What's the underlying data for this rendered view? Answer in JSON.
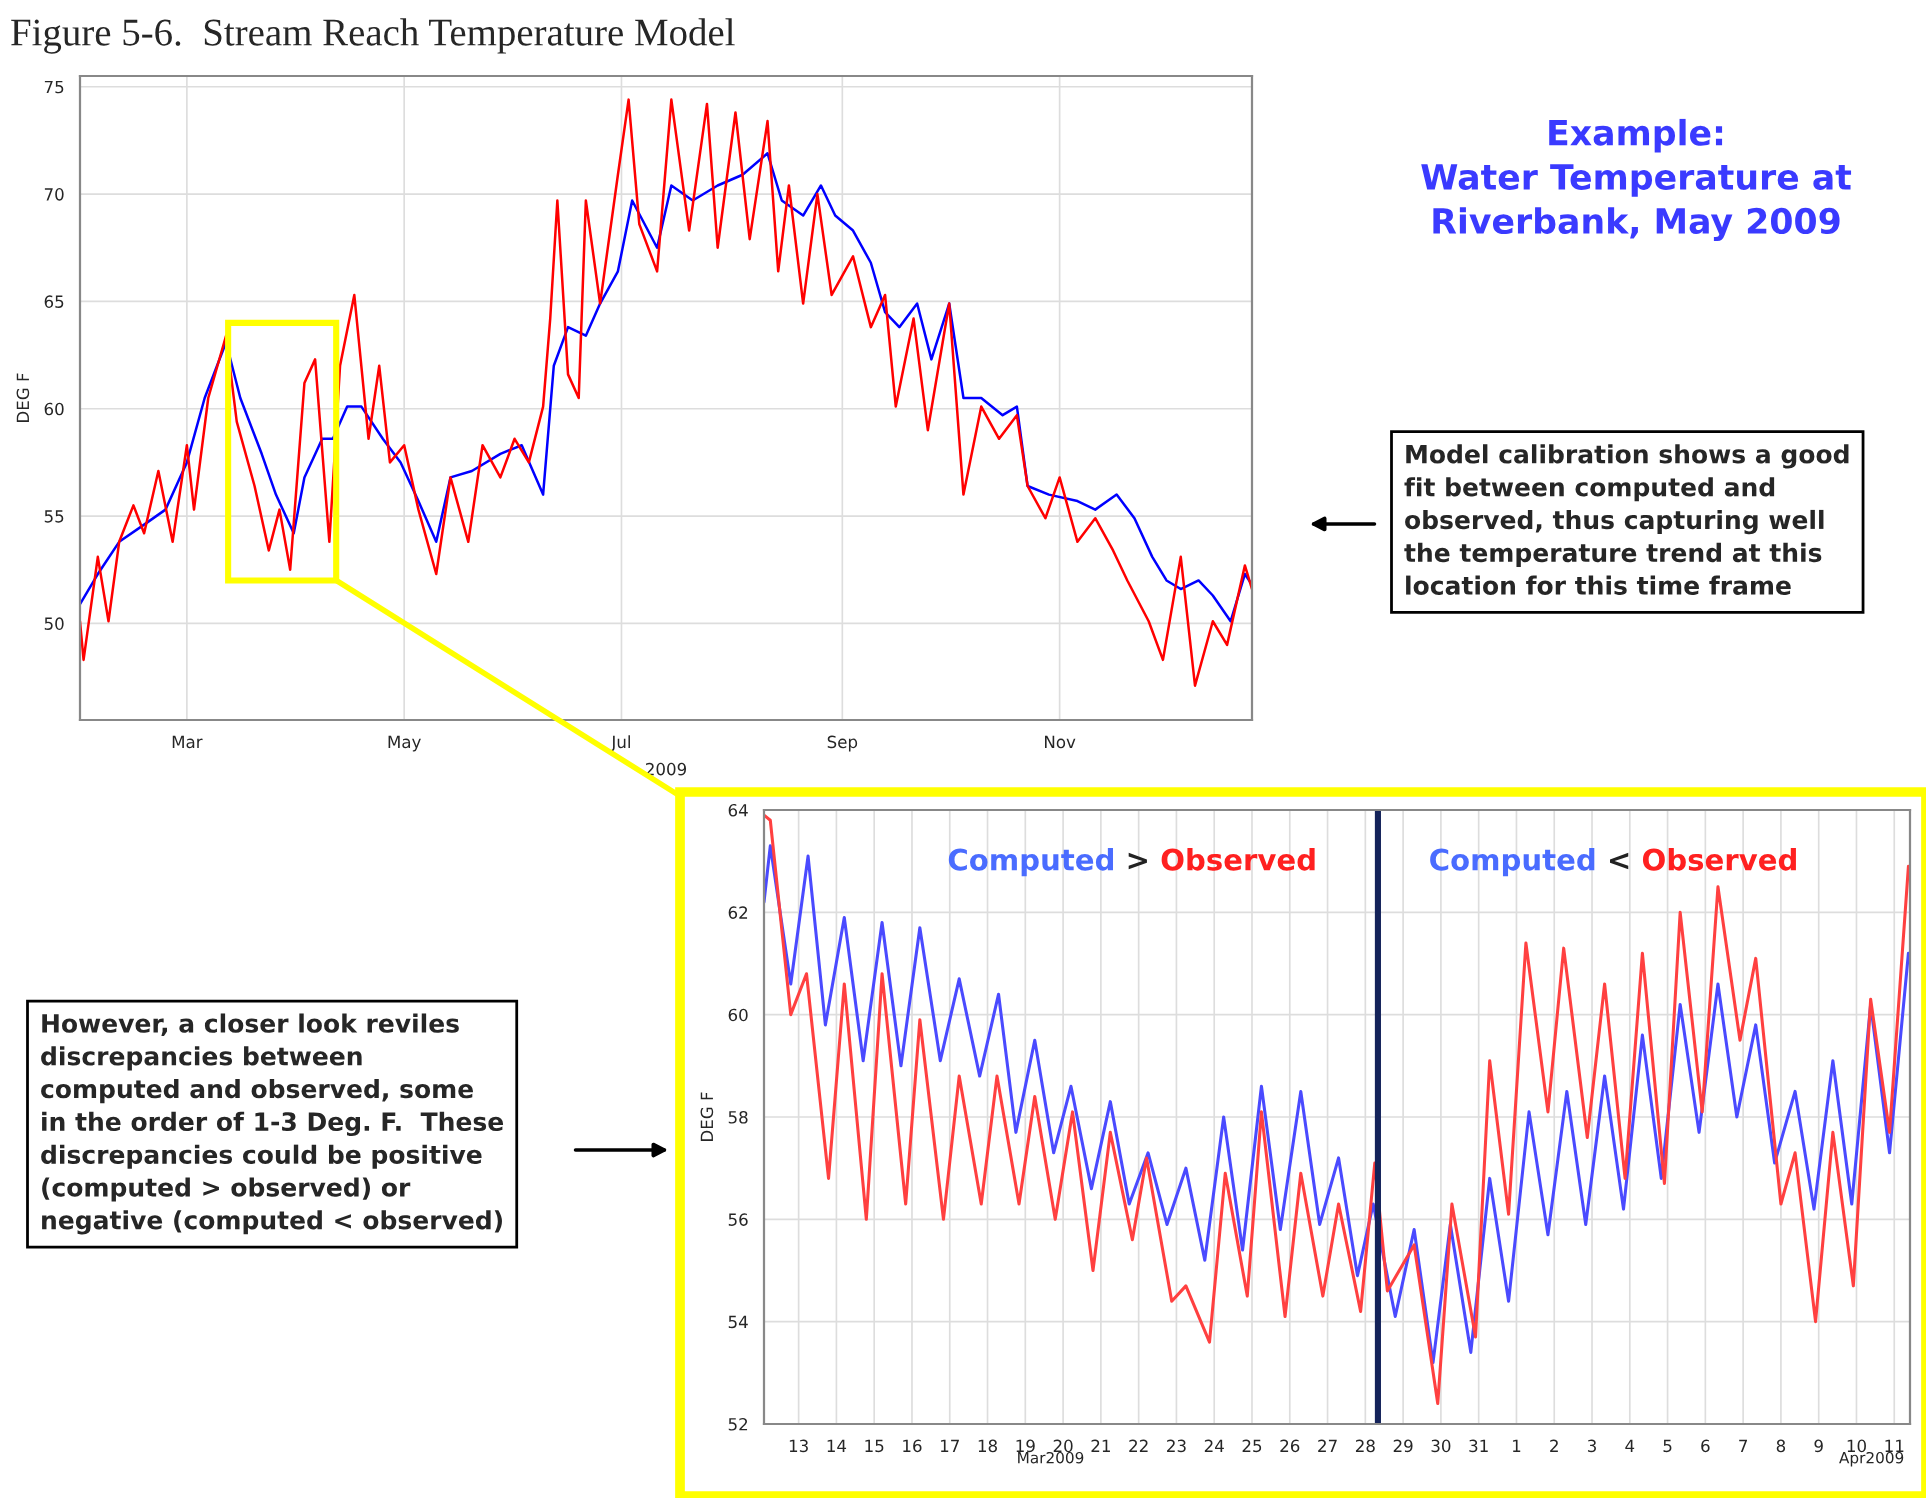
{
  "chart_data": [
    {
      "type": "line",
      "title": "Figure 5-6.  Stream Reach Temperature Model",
      "ylabel": "DEG F",
      "xlabel": "2009",
      "x": [
        "2009-01-30",
        "2009-01-31",
        "2009-02-04",
        "2009-02-07",
        "2009-02-10",
        "2009-02-14",
        "2009-02-17",
        "2009-02-21",
        "2009-02-25",
        "2009-03-01",
        "2009-03-03",
        "2009-03-07",
        "2009-03-12",
        "2009-03-15",
        "2009-03-20",
        "2009-03-24",
        "2009-03-27",
        "2009-03-30",
        "2009-04-03",
        "2009-04-06",
        "2009-04-10",
        "2009-04-13",
        "2009-04-17",
        "2009-04-21",
        "2009-04-24",
        "2009-04-27",
        "2009-05-01",
        "2009-05-05",
        "2009-05-10",
        "2009-05-14",
        "2009-05-19",
        "2009-05-23",
        "2009-05-28",
        "2009-06-01",
        "2009-06-05",
        "2009-06-09",
        "2009-06-11",
        "2009-06-13",
        "2009-06-16",
        "2009-06-19",
        "2009-06-21",
        "2009-06-25",
        "2009-06-30",
        "2009-07-03",
        "2009-07-06",
        "2009-07-11",
        "2009-07-15",
        "2009-07-20",
        "2009-07-25",
        "2009-07-28",
        "2009-08-02",
        "2009-08-06",
        "2009-08-11",
        "2009-08-14",
        "2009-08-17",
        "2009-08-21",
        "2009-08-25",
        "2009-08-29",
        "2009-09-04",
        "2009-09-09",
        "2009-09-13",
        "2009-09-16",
        "2009-09-21",
        "2009-09-25",
        "2009-10-01",
        "2009-10-05",
        "2009-10-10",
        "2009-10-15",
        "2009-10-20",
        "2009-10-23",
        "2009-10-28",
        "2009-11-01",
        "2009-11-06",
        "2009-11-11",
        "2009-11-16",
        "2009-11-20",
        "2009-11-26",
        "2009-11-30",
        "2009-12-05",
        "2009-12-09",
        "2009-12-14",
        "2009-12-18",
        "2009-12-23",
        "2009-12-25"
      ],
      "series": [
        {
          "color": "#0000ff",
          "x": [
            "2009-01-30",
            "2009-02-04",
            "2009-02-10",
            "2009-02-17",
            "2009-02-23",
            "2009-03-01",
            "2009-03-06",
            "2009-03-12",
            "2009-03-16",
            "2009-03-22",
            "2009-03-26",
            "2009-03-31",
            "2009-04-03",
            "2009-04-08",
            "2009-04-11",
            "2009-04-15",
            "2009-04-19",
            "2009-04-25",
            "2009-04-30",
            "2009-05-05",
            "2009-05-10",
            "2009-05-14",
            "2009-05-20",
            "2009-05-28",
            "2009-06-03",
            "2009-06-09",
            "2009-06-12",
            "2009-06-16",
            "2009-06-21",
            "2009-06-25",
            "2009-06-30",
            "2009-07-04",
            "2009-07-11",
            "2009-07-15",
            "2009-07-21",
            "2009-07-28",
            "2009-08-04",
            "2009-08-11",
            "2009-08-15",
            "2009-08-21",
            "2009-08-26",
            "2009-08-30",
            "2009-09-04",
            "2009-09-09",
            "2009-09-13",
            "2009-09-17",
            "2009-09-22",
            "2009-09-26",
            "2009-10-01",
            "2009-10-05",
            "2009-10-10",
            "2009-10-16",
            "2009-10-20",
            "2009-10-23",
            "2009-10-29",
            "2009-11-06",
            "2009-11-11",
            "2009-11-17",
            "2009-11-22",
            "2009-11-27",
            "2009-12-01",
            "2009-12-05",
            "2009-12-10",
            "2009-12-14",
            "2009-12-19",
            "2009-12-23",
            "2009-12-25"
          ],
          "values": [
            50.9,
            52.3,
            53.8,
            54.6,
            55.3,
            57.5,
            60.5,
            63.1,
            60.5,
            57.9,
            56.0,
            54.2,
            56.8,
            58.6,
            58.6,
            60.1,
            60.1,
            58.6,
            57.5,
            55.7,
            53.8,
            56.8,
            57.1,
            57.9,
            58.3,
            56.0,
            62.0,
            63.8,
            63.4,
            64.9,
            66.4,
            69.7,
            67.5,
            70.4,
            69.7,
            70.4,
            70.9,
            71.9,
            69.7,
            69.0,
            70.4,
            69.0,
            68.3,
            66.8,
            64.5,
            63.8,
            64.9,
            62.3,
            64.9,
            60.5,
            60.5,
            59.7,
            60.1,
            56.4,
            56.0,
            55.7,
            55.3,
            56.0,
            54.9,
            53.1,
            52.0,
            51.6,
            52.0,
            51.3,
            50.1,
            52.3,
            51.8
          ]
        },
        {
          "color": "#ff0000",
          "values": [
            50.1,
            48.3,
            53.1,
            50.1,
            53.8,
            55.5,
            54.2,
            57.1,
            53.8,
            58.3,
            55.3,
            60.5,
            63.4,
            59.4,
            56.4,
            53.4,
            55.3,
            52.5,
            61.2,
            62.3,
            53.8,
            62.0,
            65.3,
            58.6,
            62.0,
            57.5,
            58.3,
            55.3,
            52.3,
            56.8,
            53.8,
            58.3,
            56.8,
            58.6,
            57.5,
            60.1,
            64.2,
            69.7,
            61.6,
            60.5,
            69.7,
            64.9,
            70.9,
            74.4,
            68.6,
            66.4,
            74.4,
            68.3,
            74.2,
            67.5,
            73.8,
            67.9,
            73.4,
            66.4,
            70.4,
            64.9,
            70.0,
            65.3,
            67.1,
            63.8,
            65.3,
            60.1,
            64.2,
            59.0,
            64.9,
            56.0,
            60.1,
            58.6,
            59.7,
            56.4,
            54.9,
            56.8,
            53.8,
            54.9,
            53.4,
            52.0,
            50.1,
            48.3,
            53.1,
            47.1,
            50.1,
            49.0,
            52.7,
            51.6
          ]
        }
      ],
      "xlim": [
        "2009-01-30",
        "2009-12-25"
      ],
      "xticks": [
        {
          "value": "2009-03-01",
          "label": "Mar"
        },
        {
          "value": "2009-05-01",
          "label": "May"
        },
        {
          "value": "2009-07-01",
          "label": "Jul"
        },
        {
          "value": "2009-09-01",
          "label": "Sep"
        },
        {
          "value": "2009-11-01",
          "label": "Nov"
        }
      ],
      "ylim": [
        45.5,
        75.5
      ],
      "yticks": [
        50,
        55,
        60,
        65,
        70,
        75
      ],
      "grid": true,
      "line_style": "solid",
      "annotations": [
        "Example:\nWater Temperature at\nRiverbank, May 2009",
        "Model calibration shows a good\nfit between computed and\nobserved, thus capturing well\nthe temperature trend at this\nlocation for this time frame"
      ]
    },
    {
      "type": "line",
      "ylabel": "DEG F",
      "series": [
        {
          "color": "#4a4aff",
          "x": [
            "2009-03-12T14:00",
            "2009-03-12T18:00",
            "2009-03-13T07:00",
            "2009-03-13T18:00",
            "2009-03-14T05:00",
            "2009-03-14T17:00",
            "2009-03-15T05:00",
            "2009-03-15T17:00",
            "2009-03-16T05:00",
            "2009-03-16T17:00",
            "2009-03-17T06:00",
            "2009-03-17T18:00",
            "2009-03-18T07:00",
            "2009-03-18T19:00",
            "2009-03-19T06:00",
            "2009-03-19T18:00",
            "2009-03-20T06:00",
            "2009-03-20T17:00",
            "2009-03-21T06:00",
            "2009-03-21T18:00",
            "2009-03-22T06:00",
            "2009-03-22T18:00",
            "2009-03-23T06:00",
            "2009-03-23T18:00",
            "2009-03-24T06:00",
            "2009-03-24T18:00",
            "2009-03-25T06:00",
            "2009-03-25T18:00",
            "2009-03-26T06:00",
            "2009-03-26T19:00",
            "2009-03-27T07:00",
            "2009-03-27T19:00",
            "2009-03-28T07:00",
            "2009-03-28T17:00",
            "2009-03-29T07:00",
            "2009-03-29T19:00",
            "2009-03-30T07:00",
            "2009-03-30T18:00",
            "2009-03-31T07:00",
            "2009-03-31T19:00",
            "2009-04-01T07:00",
            "2009-04-01T20:00",
            "2009-04-02T08:00",
            "2009-04-02T20:00",
            "2009-04-03T08:00",
            "2009-04-03T20:00",
            "2009-04-04T08:00",
            "2009-04-04T20:00",
            "2009-04-05T08:00",
            "2009-04-05T20:00",
            "2009-04-06T08:00",
            "2009-04-06T20:00",
            "2009-04-07T08:00",
            "2009-04-07T20:00",
            "2009-04-08T08:00",
            "2009-04-08T21:00",
            "2009-04-09T09:00",
            "2009-04-09T21:00",
            "2009-04-10T09:00",
            "2009-04-10T21:00",
            "2009-04-11T09:00",
            "2009-04-11T21:00"
          ],
          "values": [
            62.2,
            63.3,
            60.6,
            63.1,
            59.8,
            61.9,
            59.1,
            61.8,
            59.0,
            61.7,
            59.1,
            60.7,
            58.8,
            60.4,
            57.7,
            59.5,
            57.3,
            58.6,
            56.6,
            58.3,
            56.3,
            57.3,
            55.9,
            57.0,
            55.2,
            58.0,
            55.4,
            58.6,
            55.8,
            58.5,
            55.9,
            57.2,
            54.9,
            56.3,
            54.1,
            55.8,
            53.2,
            55.9,
            53.4,
            56.8,
            54.4,
            58.1,
            55.7,
            58.5,
            55.9,
            58.8,
            56.2,
            59.6,
            56.8,
            60.2,
            57.7,
            60.6,
            58.0,
            59.8,
            57.1,
            58.5,
            56.2,
            59.1,
            56.3,
            60.2,
            57.3,
            61.2
          ]
        },
        {
          "color": "#ff4040",
          "x": [
            "2009-03-12T14:00",
            "2009-03-12T18:00",
            "2009-03-13T07:00",
            "2009-03-13T17:00",
            "2009-03-14T07:00",
            "2009-03-14T17:00",
            "2009-03-15T07:00",
            "2009-03-15T17:00",
            "2009-03-16T08:00",
            "2009-03-16T17:00",
            "2009-03-17T08:00",
            "2009-03-17T18:00",
            "2009-03-18T08:00",
            "2009-03-18T18:00",
            "2009-03-19T08:00",
            "2009-03-19T18:00",
            "2009-03-20T07:00",
            "2009-03-20T18:00",
            "2009-03-21T07:00",
            "2009-03-21T18:00",
            "2009-03-22T08:00",
            "2009-03-22T17:00",
            "2009-03-23T09:00",
            "2009-03-23T18:00",
            "2009-03-24T09:00",
            "2009-03-24T19:00",
            "2009-03-25T09:00",
            "2009-03-25T18:00",
            "2009-03-26T09:00",
            "2009-03-26T19:00",
            "2009-03-27T09:00",
            "2009-03-27T19:00",
            "2009-03-28T09:00",
            "2009-03-28T18:00",
            "2009-03-29T02:00",
            "2009-03-29T19:00",
            "2009-03-30T10:00",
            "2009-03-30T19:00",
            "2009-03-31T10:00",
            "2009-03-31T19:00",
            "2009-04-01T07:00",
            "2009-04-01T18:00",
            "2009-04-02T08:00",
            "2009-04-02T18:00",
            "2009-04-03T09:00",
            "2009-04-03T20:00",
            "2009-04-04T09:00",
            "2009-04-04T20:00",
            "2009-04-05T10:00",
            "2009-04-05T20:00",
            "2009-04-06T10:00",
            "2009-04-06T20:00",
            "2009-04-07T10:00",
            "2009-04-07T20:00",
            "2009-04-08T12:00",
            "2009-04-08T21:00",
            "2009-04-09T10:00",
            "2009-04-09T21:00",
            "2009-04-10T10:00",
            "2009-04-10T21:00",
            "2009-04-11T09:00",
            "2009-04-11T21:00"
          ],
          "values": [
            63.9,
            63.8,
            60.0,
            60.8,
            56.8,
            60.6,
            56.0,
            60.8,
            56.3,
            59.9,
            56.0,
            58.8,
            56.3,
            58.8,
            56.3,
            58.4,
            56.0,
            58.1,
            55.0,
            57.7,
            55.6,
            57.2,
            54.4,
            54.7,
            53.6,
            56.9,
            54.5,
            58.1,
            54.1,
            56.9,
            54.5,
            56.3,
            54.2,
            57.1,
            54.6,
            55.5,
            52.4,
            56.3,
            53.7,
            59.1,
            56.1,
            61.4,
            58.1,
            61.3,
            57.6,
            60.6,
            56.8,
            61.2,
            56.7,
            62.0,
            58.1,
            62.5,
            59.5,
            61.1,
            56.3,
            57.3,
            54.0,
            57.7,
            54.7,
            60.3,
            57.7,
            62.9
          ]
        }
      ],
      "xlim": [
        "2009-03-12T14:00",
        "2009-04-11T22:00"
      ],
      "xticks": [
        {
          "value": "2009-03-13T12:00",
          "label": "13"
        },
        {
          "value": "2009-03-14T12:00",
          "label": "14"
        },
        {
          "value": "2009-03-15T12:00",
          "label": "15"
        },
        {
          "value": "2009-03-16T12:00",
          "label": "16"
        },
        {
          "value": "2009-03-17T12:00",
          "label": "17"
        },
        {
          "value": "2009-03-18T12:00",
          "label": "18"
        },
        {
          "value": "2009-03-19T12:00",
          "label": "19"
        },
        {
          "value": "2009-03-20T12:00",
          "label": "20"
        },
        {
          "value": "2009-03-21T12:00",
          "label": "21"
        },
        {
          "value": "2009-03-22T12:00",
          "label": "22"
        },
        {
          "value": "2009-03-23T12:00",
          "label": "23"
        },
        {
          "value": "2009-03-24T12:00",
          "label": "24"
        },
        {
          "value": "2009-03-25T12:00",
          "label": "25"
        },
        {
          "value": "2009-03-26T12:00",
          "label": "26"
        },
        {
          "value": "2009-03-27T12:00",
          "label": "27"
        },
        {
          "value": "2009-03-28T12:00",
          "label": "28"
        },
        {
          "value": "2009-03-29T12:00",
          "label": "29"
        },
        {
          "value": "2009-03-30T12:00",
          "label": "30"
        },
        {
          "value": "2009-03-31T12:00",
          "label": "31"
        },
        {
          "value": "2009-04-01T12:00",
          "label": "1"
        },
        {
          "value": "2009-04-02T12:00",
          "label": "2"
        },
        {
          "value": "2009-04-03T12:00",
          "label": "3"
        },
        {
          "value": "2009-04-04T12:00",
          "label": "4"
        },
        {
          "value": "2009-04-05T12:00",
          "label": "5"
        },
        {
          "value": "2009-04-06T12:00",
          "label": "6"
        },
        {
          "value": "2009-04-07T12:00",
          "label": "7"
        },
        {
          "value": "2009-04-08T12:00",
          "label": "8"
        },
        {
          "value": "2009-04-09T12:00",
          "label": "9"
        },
        {
          "value": "2009-04-10T12:00",
          "label": "10"
        },
        {
          "value": "2009-04-11T12:00",
          "label": "11"
        }
      ],
      "ylim": [
        52,
        64
      ],
      "yticks": [
        52,
        54,
        56,
        58,
        60,
        62,
        64
      ],
      "grid": true,
      "line_style": "solid",
      "ref_lines": [
        {
          "axis": "x",
          "value": "2009-03-28T20:00",
          "color": "#14235a"
        }
      ],
      "annotations": [
        "However, a closer look reviles\ndiscrepancies between\ncomputed and observed, some\nin the order of 1-3 Deg. F.  These\ndiscrepancies could be positive\n(computed > observed) or\nnegative (computed < observed)",
        "Computed > Observed",
        "Computed < Observed",
        "Mar2009",
        "Apr2009"
      ]
    }
  ]
}
